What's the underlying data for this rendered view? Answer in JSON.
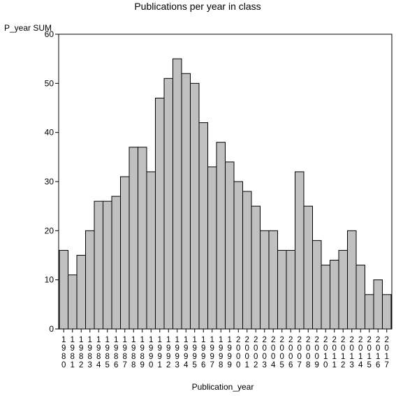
{
  "chart_data": {
    "type": "bar",
    "title": "Publications per year in class",
    "xlabel": "Publication_year",
    "ylabel": "P_year SUM",
    "ylim": [
      0,
      60
    ],
    "yticks": [
      0,
      10,
      20,
      30,
      40,
      50,
      60
    ],
    "grid": false,
    "bar_color": "#c0c0c0",
    "edge_color": "#000000",
    "categories": [
      "1980",
      "1981",
      "1982",
      "1983",
      "1984",
      "1985",
      "1986",
      "1987",
      "1988",
      "1989",
      "1990",
      "1991",
      "1992",
      "1993",
      "1994",
      "1995",
      "1996",
      "1997",
      "1998",
      "1999",
      "2000",
      "2001",
      "2002",
      "2003",
      "2004",
      "2005",
      "2006",
      "2007",
      "2008",
      "2009",
      "2010",
      "2011",
      "2012",
      "2013",
      "2014",
      "2015",
      "2016",
      "2017"
    ],
    "values": [
      16,
      11,
      15,
      20,
      26,
      26,
      27,
      31,
      37,
      37,
      32,
      47,
      51,
      55,
      52,
      50,
      42,
      33,
      38,
      34,
      30,
      28,
      25,
      20,
      20,
      16,
      16,
      32,
      25,
      18,
      13,
      14,
      16,
      20,
      13,
      7,
      10,
      7
    ]
  }
}
